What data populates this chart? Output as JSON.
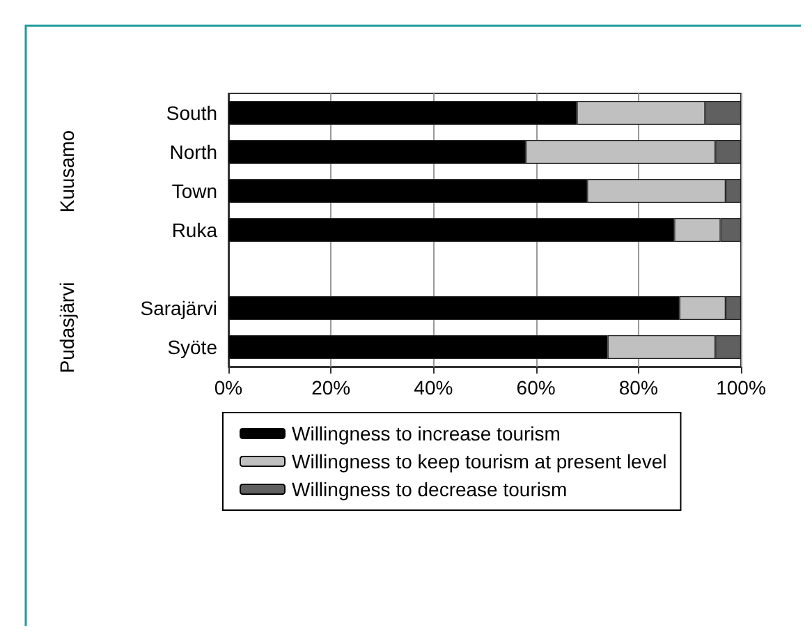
{
  "chart_data": {
    "type": "bar",
    "orientation": "horizontal",
    "stacked": true,
    "categories": [
      "South",
      "North",
      "Town",
      "Ruka",
      null,
      "Sarajärvi",
      "Syöte"
    ],
    "series": [
      {
        "name": "Willingness to increase tourism",
        "color": "#000000",
        "values": [
          68,
          58,
          70,
          87,
          null,
          88,
          74
        ]
      },
      {
        "name": "Willingness to keep tourism at present level",
        "color": "#c0c0c0",
        "values": [
          25,
          37,
          27,
          9,
          null,
          9,
          21
        ]
      },
      {
        "name": "Willingness to decrease tourism",
        "color": "#606060",
        "values": [
          7,
          5,
          3,
          4,
          null,
          3,
          5
        ]
      }
    ],
    "xlim": [
      0,
      100
    ],
    "xticks": [
      {
        "value": 0,
        "label": "0%"
      },
      {
        "value": 20,
        "label": "20%"
      },
      {
        "value": 40,
        "label": "40%"
      },
      {
        "value": 60,
        "label": "60%"
      },
      {
        "value": 80,
        "label": "80%"
      },
      {
        "value": 100,
        "label": "100%"
      }
    ],
    "annotations": [
      "Kuusamo",
      "Pudasjärvi"
    ],
    "grid": "x",
    "legend": "bottom"
  }
}
